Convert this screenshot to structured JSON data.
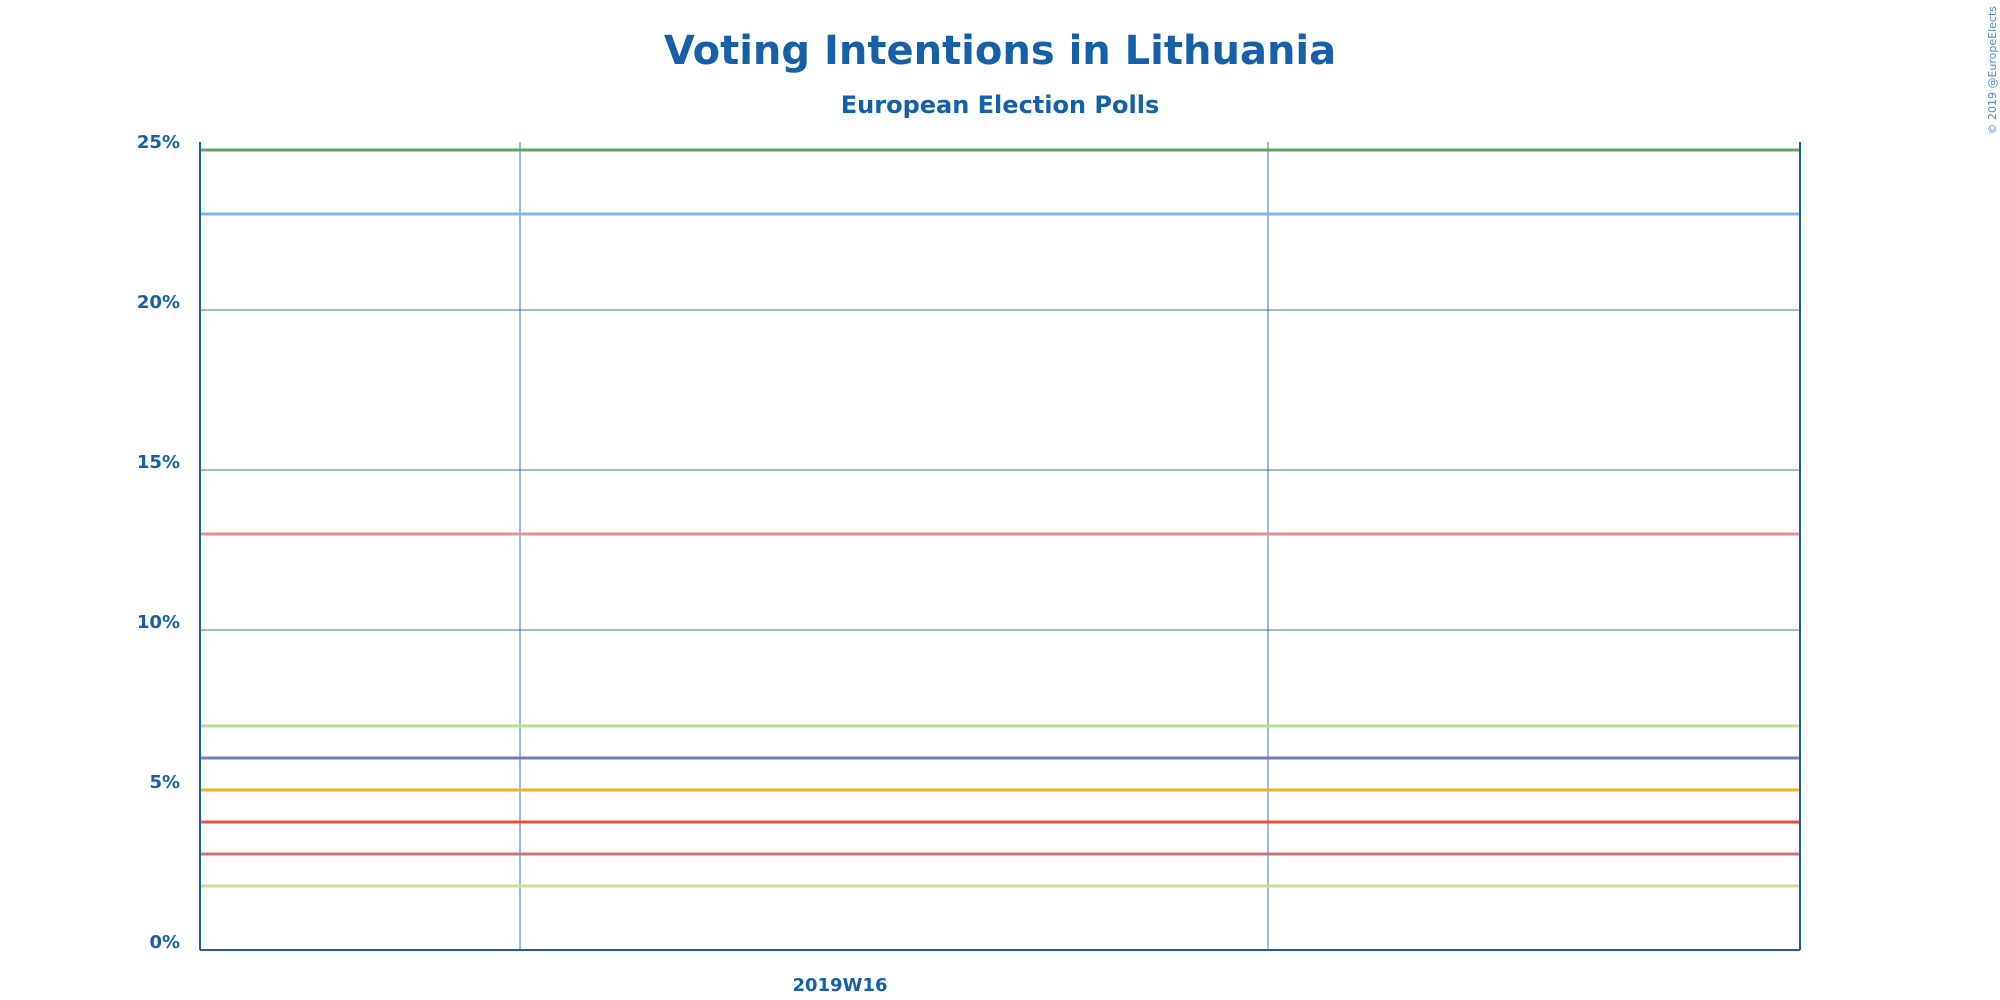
{
  "chart_data": {
    "type": "line",
    "title": "Voting Intentions in Lithuania",
    "subtitle": "European Election Polls",
    "xlabel": "",
    "ylabel": "",
    "ylim": [
      0,
      25
    ],
    "y_ticks": [
      0,
      5,
      10,
      15,
      20,
      25
    ],
    "y_tick_labels": [
      "0%",
      "5%",
      "10%",
      "15%",
      "20%",
      "25%"
    ],
    "x_tick_labels": [
      "2019W16"
    ],
    "grid": true,
    "series": [
      {
        "color": "#5fa35f",
        "values": [
          25,
          25
        ]
      },
      {
        "color": "#7ab8ef",
        "values": [
          23,
          23
        ]
      },
      {
        "color": "#ee8f98",
        "values": [
          13,
          13
        ]
      },
      {
        "color": "#b7e08a",
        "values": [
          7,
          7
        ]
      },
      {
        "color": "#6f7eb5",
        "values": [
          6,
          6
        ]
      },
      {
        "color": "#efb522",
        "values": [
          5,
          5
        ]
      },
      {
        "color": "#ec4f3e",
        "values": [
          4,
          4
        ]
      },
      {
        "color": "#d0707a",
        "values": [
          3,
          3
        ]
      },
      {
        "color": "#c8e08c",
        "values": [
          2,
          2
        ]
      }
    ],
    "axis_color": "#1660aa",
    "credit": "© 2019 @EuropeElects"
  }
}
